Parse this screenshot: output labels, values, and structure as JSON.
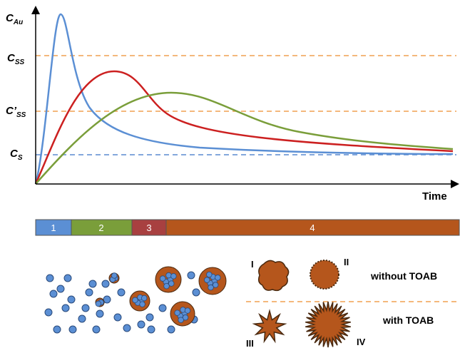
{
  "axes": {
    "y_label": {
      "main": "C",
      "sub": "Au"
    },
    "x_label": "Time",
    "levels": [
      {
        "main": "C",
        "sub": "SS"
      },
      {
        "main": "C’",
        "sub": "SS"
      },
      {
        "main": "C",
        "sub": "S"
      }
    ]
  },
  "stages": [
    "1",
    "2",
    "3",
    "4"
  ],
  "shapes": [
    "I",
    "II",
    "III",
    "IV"
  ],
  "conditions": [
    "without TOAB",
    "with TOAB"
  ]
}
